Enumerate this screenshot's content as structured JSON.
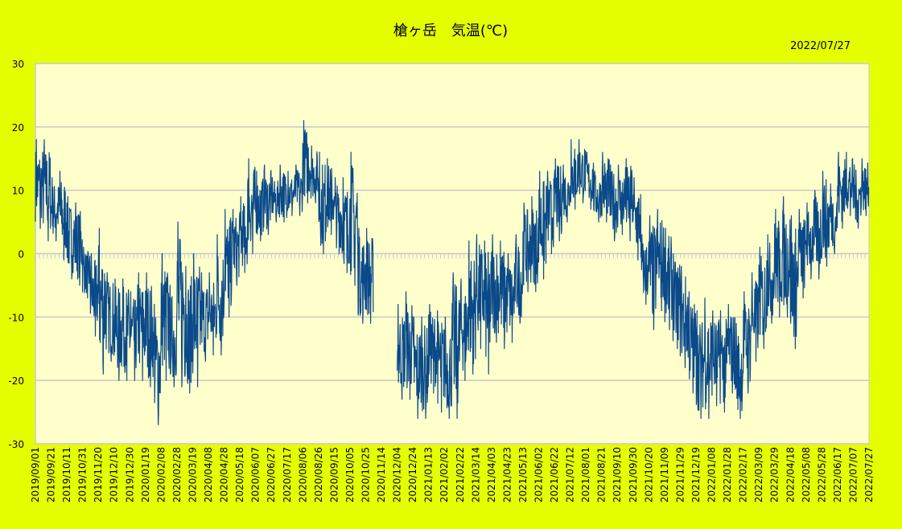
{
  "chart_data": {
    "type": "line",
    "title": "槍ヶ岳　気温(℃)",
    "date_stamp": "2022/07/27",
    "xlabel": "",
    "ylabel": "",
    "ylim": [
      -30,
      30
    ],
    "yticks": [
      30,
      20,
      10,
      0,
      -10,
      -20,
      -30
    ],
    "grid": true,
    "legend": "none",
    "line_color": "#0a4a8a",
    "background_color": "#e5ff00",
    "plot_background_color": "#ffffcc",
    "x_start": "2019/09/01",
    "x_end": "2022/07/27",
    "xtick_labels": [
      "2019/09/01",
      "2019/09/21",
      "2019/10/11",
      "2019/10/31",
      "2019/11/20",
      "2019/12/10",
      "2019/12/30",
      "2020/01/19",
      "2020/02/08",
      "2020/02/28",
      "2020/03/19",
      "2020/04/08",
      "2020/04/28",
      "2020/05/18",
      "2020/06/07",
      "2020/06/27",
      "2020/07/17",
      "2020/08/06",
      "2020/08/26",
      "2020/09/15",
      "2020/10/05",
      "2020/10/25",
      "2020/11/14",
      "2020/12/04",
      "2020/12/24",
      "2021/01/13",
      "2021/02/02",
      "2021/02/22",
      "2021/03/14",
      "2021/04/03",
      "2021/04/23",
      "2021/05/13",
      "2021/06/02",
      "2021/06/22",
      "2021/07/12",
      "2021/08/01",
      "2021/08/21",
      "2021/09/10",
      "2021/09/30",
      "2021/10/20",
      "2021/11/09",
      "2021/11/29",
      "2021/12/19",
      "2022/01/08",
      "2022/01/28",
      "2022/02/17",
      "2022/03/09",
      "2022/03/29",
      "2022/04/18",
      "2022/05/08",
      "2022/05/28",
      "2022/06/17",
      "2022/07/07",
      "2022/07/27"
    ],
    "series_note_interval_days": 10,
    "series": [
      {
        "values_min_max": [
          [
            4,
            18
          ],
          [
            2,
            18
          ],
          [
            2,
            12
          ],
          [
            -1,
            13
          ],
          [
            -4,
            9
          ],
          [
            -5,
            8
          ],
          [
            -7,
            1
          ],
          [
            -13,
            0
          ],
          [
            -19,
            4
          ],
          [
            -17,
            -3
          ],
          [
            -20,
            -4
          ],
          [
            -20,
            -4
          ],
          [
            -20,
            -6
          ],
          [
            -20,
            -3
          ],
          [
            -21,
            -3
          ],
          [
            -27,
            -8
          ],
          [
            -20,
            0
          ],
          [
            -21,
            -5
          ],
          [
            -21,
            5
          ],
          [
            -22,
            -2
          ],
          [
            -21,
            0
          ],
          [
            -17,
            -3
          ],
          [
            -16,
            -3
          ],
          [
            -16,
            3
          ],
          [
            -10,
            7
          ],
          [
            -5,
            7
          ],
          [
            -3,
            9
          ],
          [
            0,
            15
          ],
          [
            2,
            13
          ],
          [
            3,
            14
          ],
          [
            5,
            12
          ],
          [
            5,
            14
          ],
          [
            6,
            13
          ],
          [
            6,
            14
          ],
          [
            8,
            21
          ],
          [
            8,
            17
          ],
          [
            0,
            16
          ],
          [
            3,
            15
          ],
          [
            0,
            12
          ],
          [
            -3,
            12
          ],
          [
            -5,
            16
          ],
          [
            -11,
            4
          ],
          [
            -11,
            4
          ],
          null,
          null,
          null,
          [
            -23,
            -8
          ],
          [
            -23,
            -6
          ],
          [
            -26,
            -10
          ],
          [
            -26,
            -10
          ],
          [
            -22,
            -8
          ],
          [
            -25,
            -9
          ],
          [
            -26,
            -10
          ],
          [
            -26,
            -3
          ],
          [
            -20,
            -4
          ],
          [
            -19,
            2
          ],
          [
            -15,
            3
          ],
          [
            -19,
            2
          ],
          [
            -14,
            3
          ],
          [
            -15,
            2
          ],
          [
            -14,
            0
          ],
          [
            -11,
            3
          ],
          [
            -6,
            8
          ],
          [
            -6,
            9
          ],
          [
            -4,
            13
          ],
          [
            0,
            13
          ],
          [
            2,
            15
          ],
          [
            5,
            14
          ],
          [
            7,
            18
          ],
          [
            8,
            18
          ],
          [
            7,
            16
          ],
          [
            5,
            13
          ],
          [
            5,
            16
          ],
          [
            2,
            14
          ],
          [
            3,
            14
          ],
          [
            2,
            15
          ],
          [
            -1,
            12
          ],
          [
            -8,
            3
          ],
          [
            -12,
            6
          ],
          [
            -9,
            7
          ],
          [
            -12,
            4
          ],
          [
            -15,
            0
          ],
          [
            -18,
            -2
          ],
          [
            -22,
            -6
          ],
          [
            -26,
            -9
          ],
          [
            -26,
            -7
          ],
          [
            -24,
            -9
          ],
          [
            -25,
            -9
          ],
          [
            -22,
            -8
          ],
          [
            -26,
            -11
          ],
          [
            -22,
            -6
          ],
          [
            -17,
            -3
          ],
          [
            -15,
            1
          ],
          [
            -11,
            3
          ],
          [
            -10,
            7
          ],
          [
            -10,
            9
          ],
          [
            -15,
            6
          ],
          [
            -7,
            7
          ],
          [
            -4,
            8
          ],
          [
            -4,
            10
          ],
          [
            -2,
            13
          ],
          [
            0,
            11
          ],
          [
            4,
            16
          ],
          [
            6,
            16
          ],
          [
            4,
            14
          ],
          [
            6,
            15
          ]
        ]
      }
    ]
  }
}
